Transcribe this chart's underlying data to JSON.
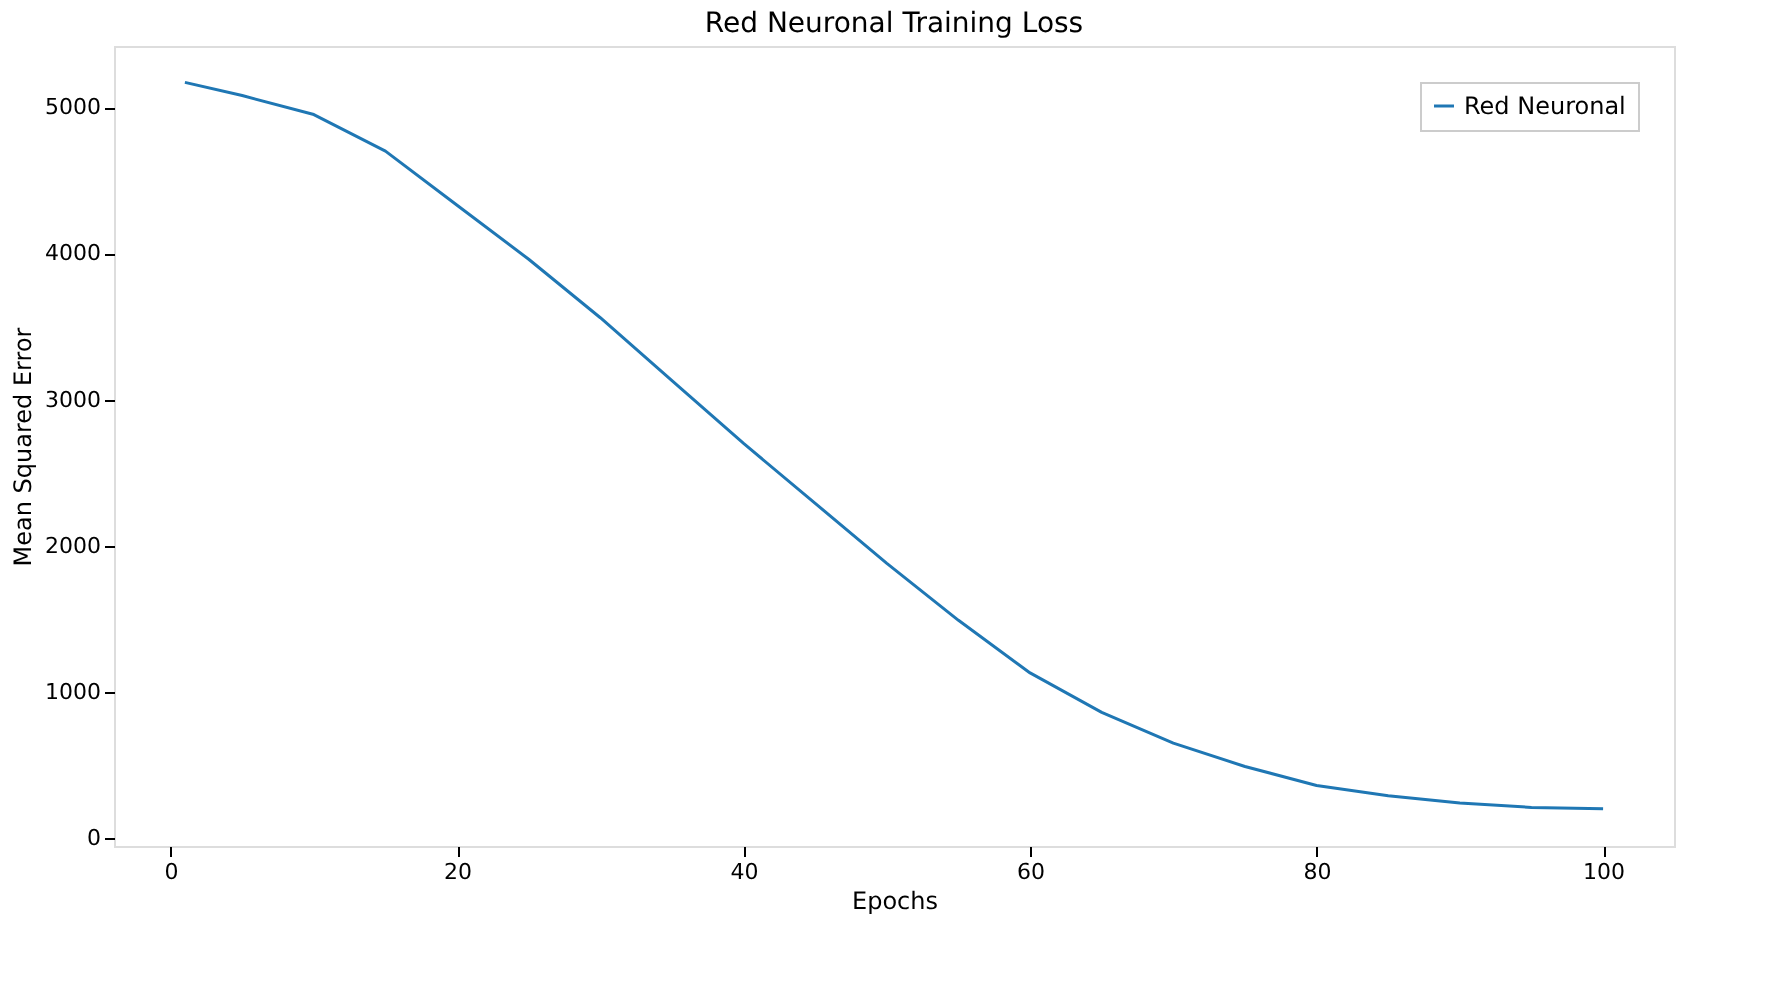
{
  "chart_data": {
    "type": "line",
    "title": "Red Neuronal Training Loss",
    "xlabel": "Epochs",
    "ylabel": "Mean Squared Error",
    "x": [
      1,
      5,
      10,
      15,
      20,
      25,
      30,
      35,
      40,
      45,
      50,
      55,
      60,
      65,
      70,
      75,
      80,
      85,
      90,
      95,
      100
    ],
    "series": [
      {
        "name": "Red Neuronal",
        "color": "#1f77b4",
        "values": [
          5170,
          5080,
          4950,
          4700,
          4330,
          3960,
          3560,
          3130,
          2700,
          2290,
          1880,
          1490,
          1130,
          860,
          650,
          490,
          360,
          290,
          240,
          210,
          200
        ]
      }
    ],
    "xlim": [
      -3.95,
      104.95
    ],
    "xticks": [
      0,
      20,
      40,
      60,
      80,
      100
    ],
    "ylim": [
      -54,
      5419
    ],
    "yticks": [
      0,
      1000,
      2000,
      3000,
      4000,
      5000
    ],
    "grid": false,
    "legend": "top right",
    "marker": "none",
    "line_style": "solid"
  }
}
